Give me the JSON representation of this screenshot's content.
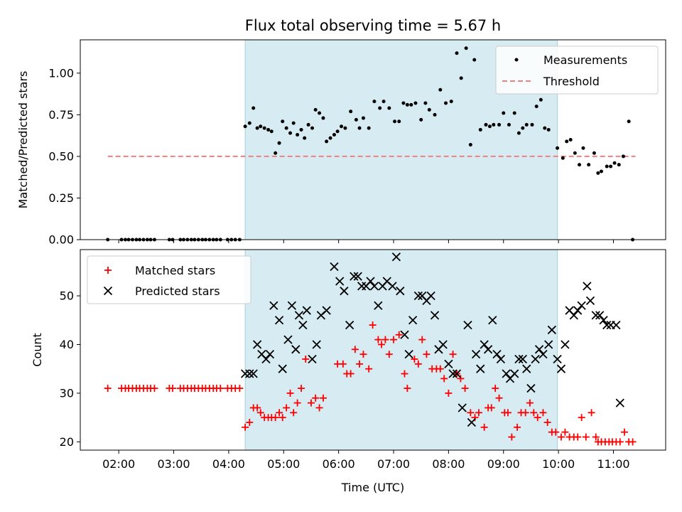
{
  "chart_data": {
    "type": "scatter",
    "title": "Flux total observing time = 5.67 h",
    "xlabel": "Time (UTC)",
    "x_unit": "hours UTC",
    "xlim": [
      1.3,
      11.95
    ],
    "xticks": [
      2,
      3,
      4,
      5,
      6,
      7,
      8,
      9,
      10,
      11
    ],
    "xtick_labels": [
      "02:00",
      "03:00",
      "04:00",
      "05:00",
      "06:00",
      "07:00",
      "08:00",
      "09:00",
      "10:00",
      "11:00"
    ],
    "observing_window": [
      4.3,
      9.98
    ],
    "top": {
      "ylabel": "Matched/Predicted stars",
      "ylim": [
        0,
        1.2
      ],
      "yticks": [
        0.0,
        0.25,
        0.5,
        0.75,
        1.0
      ],
      "ytick_labels": [
        "0.00",
        "0.25",
        "0.50",
        "0.75",
        "1.00"
      ],
      "legend": [
        "Measurements",
        "Threshold"
      ],
      "threshold": {
        "value": 0.5,
        "x_range": [
          1.8,
          11.4
        ]
      },
      "measurements": [
        [
          1.8,
          0
        ],
        [
          2.05,
          0
        ],
        [
          2.12,
          0
        ],
        [
          2.18,
          0
        ],
        [
          2.25,
          0
        ],
        [
          2.32,
          0
        ],
        [
          2.38,
          0
        ],
        [
          2.45,
          0
        ],
        [
          2.52,
          0
        ],
        [
          2.58,
          0
        ],
        [
          2.65,
          0
        ],
        [
          2.92,
          0
        ],
        [
          2.98,
          0
        ],
        [
          3.12,
          0
        ],
        [
          3.18,
          0
        ],
        [
          3.25,
          0
        ],
        [
          3.32,
          0
        ],
        [
          3.38,
          0
        ],
        [
          3.45,
          0
        ],
        [
          3.52,
          0
        ],
        [
          3.58,
          0
        ],
        [
          3.65,
          0
        ],
        [
          3.72,
          0
        ],
        [
          3.78,
          0
        ],
        [
          3.85,
          0
        ],
        [
          3.98,
          0
        ],
        [
          4.05,
          0
        ],
        [
          4.12,
          0
        ],
        [
          4.2,
          0
        ],
        [
          4.3,
          0.68
        ],
        [
          4.38,
          0.7
        ],
        [
          4.45,
          0.79
        ],
        [
          4.52,
          0.67
        ],
        [
          4.58,
          0.68
        ],
        [
          4.65,
          0.67
        ],
        [
          4.72,
          0.66
        ],
        [
          4.78,
          0.65
        ],
        [
          4.85,
          0.52
        ],
        [
          4.92,
          0.58
        ],
        [
          4.98,
          0.71
        ],
        [
          5.05,
          0.67
        ],
        [
          5.12,
          0.64
        ],
        [
          5.18,
          0.7
        ],
        [
          5.25,
          0.63
        ],
        [
          5.32,
          0.66
        ],
        [
          5.38,
          0.61
        ],
        [
          5.45,
          0.69
        ],
        [
          5.52,
          0.67
        ],
        [
          5.58,
          0.78
        ],
        [
          5.65,
          0.76
        ],
        [
          5.72,
          0.73
        ],
        [
          5.78,
          0.59
        ],
        [
          5.85,
          0.61
        ],
        [
          5.92,
          0.63
        ],
        [
          5.98,
          0.65
        ],
        [
          6.05,
          0.68
        ],
        [
          6.12,
          0.67
        ],
        [
          6.22,
          0.77
        ],
        [
          6.32,
          0.72
        ],
        [
          6.38,
          0.67
        ],
        [
          6.45,
          0.73
        ],
        [
          6.55,
          0.67
        ],
        [
          6.65,
          0.83
        ],
        [
          6.75,
          0.79
        ],
        [
          6.82,
          0.83
        ],
        [
          6.92,
          0.79
        ],
        [
          7.02,
          0.71
        ],
        [
          7.1,
          0.71
        ],
        [
          7.18,
          0.82
        ],
        [
          7.25,
          0.81
        ],
        [
          7.32,
          0.81
        ],
        [
          7.4,
          0.82
        ],
        [
          7.5,
          0.72
        ],
        [
          7.58,
          0.82
        ],
        [
          7.65,
          0.78
        ],
        [
          7.75,
          0.75
        ],
        [
          7.85,
          0.9
        ],
        [
          7.95,
          0.82
        ],
        [
          8.05,
          0.83
        ],
        [
          8.15,
          1.12
        ],
        [
          8.23,
          0.97
        ],
        [
          8.32,
          1.15
        ],
        [
          8.4,
          0.57
        ],
        [
          8.47,
          1.08
        ],
        [
          8.58,
          0.66
        ],
        [
          8.68,
          0.69
        ],
        [
          8.75,
          0.68
        ],
        [
          8.82,
          0.69
        ],
        [
          8.92,
          0.69
        ],
        [
          9.0,
          0.76
        ],
        [
          9.1,
          0.69
        ],
        [
          9.2,
          0.76
        ],
        [
          9.28,
          0.64
        ],
        [
          9.35,
          0.67
        ],
        [
          9.42,
          0.69
        ],
        [
          9.52,
          0.69
        ],
        [
          9.6,
          0.8
        ],
        [
          9.68,
          0.84
        ],
        [
          9.75,
          0.67
        ],
        [
          9.82,
          0.66
        ],
        [
          9.98,
          0.55
        ],
        [
          10.08,
          0.49
        ],
        [
          10.15,
          0.59
        ],
        [
          10.22,
          0.6
        ],
        [
          10.3,
          0.52
        ],
        [
          10.38,
          0.45
        ],
        [
          10.45,
          0.55
        ],
        [
          10.55,
          0.45
        ],
        [
          10.65,
          0.52
        ],
        [
          10.72,
          0.4
        ],
        [
          10.78,
          0.41
        ],
        [
          10.88,
          0.44
        ],
        [
          10.95,
          0.44
        ],
        [
          11.02,
          0.46
        ],
        [
          11.1,
          0.45
        ],
        [
          11.18,
          0.5
        ],
        [
          11.28,
          0.71
        ],
        [
          11.35,
          0
        ]
      ]
    },
    "bottom": {
      "ylabel": "Count",
      "ylim": [
        18.3,
        59.5
      ],
      "yticks": [
        20,
        30,
        40,
        50
      ],
      "ytick_labels": [
        "20",
        "30",
        "40",
        "50"
      ],
      "legend": [
        "Matched stars",
        "Predicted stars"
      ],
      "matched": [
        [
          1.8,
          31
        ],
        [
          2.05,
          31
        ],
        [
          2.12,
          31
        ],
        [
          2.18,
          31
        ],
        [
          2.25,
          31
        ],
        [
          2.32,
          31
        ],
        [
          2.38,
          31
        ],
        [
          2.45,
          31
        ],
        [
          2.52,
          31
        ],
        [
          2.58,
          31
        ],
        [
          2.65,
          31
        ],
        [
          2.92,
          31
        ],
        [
          2.98,
          31
        ],
        [
          3.12,
          31
        ],
        [
          3.18,
          31
        ],
        [
          3.25,
          31
        ],
        [
          3.32,
          31
        ],
        [
          3.38,
          31
        ],
        [
          3.45,
          31
        ],
        [
          3.52,
          31
        ],
        [
          3.58,
          31
        ],
        [
          3.65,
          31
        ],
        [
          3.72,
          31
        ],
        [
          3.78,
          31
        ],
        [
          3.85,
          31
        ],
        [
          3.98,
          31
        ],
        [
          4.05,
          31
        ],
        [
          4.12,
          31
        ],
        [
          4.2,
          31
        ],
        [
          4.3,
          23
        ],
        [
          4.38,
          24
        ],
        [
          4.45,
          27
        ],
        [
          4.52,
          27
        ],
        [
          4.58,
          26
        ],
        [
          4.65,
          25
        ],
        [
          4.72,
          25
        ],
        [
          4.78,
          25
        ],
        [
          4.85,
          25
        ],
        [
          4.92,
          26
        ],
        [
          4.98,
          25
        ],
        [
          5.05,
          27
        ],
        [
          5.12,
          30
        ],
        [
          5.18,
          26
        ],
        [
          5.25,
          28
        ],
        [
          5.32,
          31
        ],
        [
          5.4,
          37
        ],
        [
          5.5,
          28
        ],
        [
          5.58,
          29
        ],
        [
          5.65,
          27
        ],
        [
          5.72,
          29
        ],
        [
          5.98,
          36
        ],
        [
          6.08,
          36
        ],
        [
          6.15,
          34
        ],
        [
          6.22,
          34
        ],
        [
          6.3,
          39
        ],
        [
          6.38,
          36
        ],
        [
          6.45,
          38
        ],
        [
          6.55,
          35
        ],
        [
          6.62,
          44
        ],
        [
          6.72,
          41
        ],
        [
          6.78,
          40
        ],
        [
          6.85,
          41
        ],
        [
          6.92,
          38
        ],
        [
          7.0,
          41
        ],
        [
          7.1,
          42
        ],
        [
          7.2,
          34
        ],
        [
          7.25,
          31
        ],
        [
          7.38,
          37
        ],
        [
          7.45,
          36
        ],
        [
          7.52,
          41
        ],
        [
          7.6,
          38
        ],
        [
          7.7,
          35
        ],
        [
          7.78,
          35
        ],
        [
          7.85,
          35
        ],
        [
          7.92,
          33
        ],
        [
          8.0,
          30
        ],
        [
          8.08,
          38
        ],
        [
          8.15,
          34
        ],
        [
          8.22,
          33
        ],
        [
          8.3,
          31
        ],
        [
          8.4,
          26
        ],
        [
          8.48,
          25
        ],
        [
          8.55,
          26
        ],
        [
          8.65,
          23
        ],
        [
          8.72,
          27
        ],
        [
          8.78,
          27
        ],
        [
          8.85,
          31
        ],
        [
          8.92,
          29
        ],
        [
          9.02,
          26
        ],
        [
          9.08,
          26
        ],
        [
          9.15,
          21
        ],
        [
          9.25,
          23
        ],
        [
          9.32,
          26
        ],
        [
          9.4,
          26
        ],
        [
          9.48,
          28
        ],
        [
          9.55,
          26
        ],
        [
          9.62,
          25
        ],
        [
          9.72,
          26
        ],
        [
          9.8,
          24
        ],
        [
          9.88,
          22
        ],
        [
          9.95,
          22
        ],
        [
          10.05,
          21
        ],
        [
          10.12,
          22
        ],
        [
          10.2,
          21
        ],
        [
          10.28,
          21
        ],
        [
          10.35,
          21
        ],
        [
          10.42,
          25
        ],
        [
          10.5,
          21
        ],
        [
          10.6,
          26
        ],
        [
          10.68,
          21
        ],
        [
          10.72,
          20
        ],
        [
          10.78,
          20
        ],
        [
          10.85,
          20
        ],
        [
          10.92,
          20
        ],
        [
          10.98,
          20
        ],
        [
          11.05,
          20
        ],
        [
          11.12,
          20
        ],
        [
          11.2,
          22
        ],
        [
          11.28,
          20
        ],
        [
          11.35,
          20
        ]
      ],
      "predicted": [
        [
          4.3,
          34
        ],
        [
          4.38,
          34
        ],
        [
          4.45,
          34
        ],
        [
          4.52,
          40
        ],
        [
          4.6,
          38
        ],
        [
          4.68,
          37
        ],
        [
          4.75,
          38
        ],
        [
          4.82,
          48
        ],
        [
          4.92,
          45
        ],
        [
          4.98,
          35
        ],
        [
          5.08,
          41
        ],
        [
          5.15,
          48
        ],
        [
          5.22,
          39
        ],
        [
          5.28,
          46
        ],
        [
          5.35,
          44
        ],
        [
          5.42,
          47
        ],
        [
          5.52,
          37
        ],
        [
          5.6,
          40
        ],
        [
          5.68,
          46
        ],
        [
          5.78,
          47
        ],
        [
          5.92,
          56
        ],
        [
          6.02,
          53
        ],
        [
          6.1,
          51
        ],
        [
          6.2,
          44
        ],
        [
          6.28,
          54
        ],
        [
          6.35,
          54
        ],
        [
          6.42,
          52
        ],
        [
          6.5,
          52
        ],
        [
          6.58,
          53
        ],
        [
          6.65,
          52
        ],
        [
          6.72,
          48
        ],
        [
          6.8,
          52
        ],
        [
          6.88,
          53
        ],
        [
          6.98,
          52
        ],
        [
          7.05,
          58
        ],
        [
          7.12,
          51
        ],
        [
          7.2,
          42
        ],
        [
          7.28,
          38
        ],
        [
          7.35,
          45
        ],
        [
          7.45,
          50
        ],
        [
          7.52,
          50
        ],
        [
          7.6,
          49
        ],
        [
          7.68,
          50
        ],
        [
          7.75,
          46
        ],
        [
          7.82,
          39
        ],
        [
          7.9,
          40
        ],
        [
          8.0,
          36
        ],
        [
          8.08,
          34
        ],
        [
          8.15,
          34
        ],
        [
          8.25,
          27
        ],
        [
          8.35,
          44
        ],
        [
          8.42,
          24
        ],
        [
          8.5,
          38
        ],
        [
          8.58,
          35
        ],
        [
          8.65,
          40
        ],
        [
          8.72,
          39
        ],
        [
          8.8,
          45
        ],
        [
          8.88,
          38
        ],
        [
          8.95,
          37
        ],
        [
          9.05,
          34
        ],
        [
          9.12,
          33
        ],
        [
          9.2,
          34
        ],
        [
          9.28,
          37
        ],
        [
          9.35,
          37
        ],
        [
          9.42,
          35
        ],
        [
          9.5,
          31
        ],
        [
          9.58,
          37
        ],
        [
          9.65,
          39
        ],
        [
          9.72,
          38
        ],
        [
          9.82,
          40
        ],
        [
          9.88,
          43
        ],
        [
          9.98,
          37
        ],
        [
          10.05,
          35
        ],
        [
          10.12,
          40
        ],
        [
          10.2,
          47
        ],
        [
          10.28,
          46
        ],
        [
          10.35,
          47
        ],
        [
          10.42,
          48
        ],
        [
          10.52,
          52
        ],
        [
          10.58,
          49
        ],
        [
          10.68,
          46
        ],
        [
          10.75,
          46
        ],
        [
          10.82,
          45
        ],
        [
          10.88,
          44
        ],
        [
          10.95,
          44
        ],
        [
          11.05,
          44
        ],
        [
          11.12,
          28
        ]
      ]
    }
  }
}
